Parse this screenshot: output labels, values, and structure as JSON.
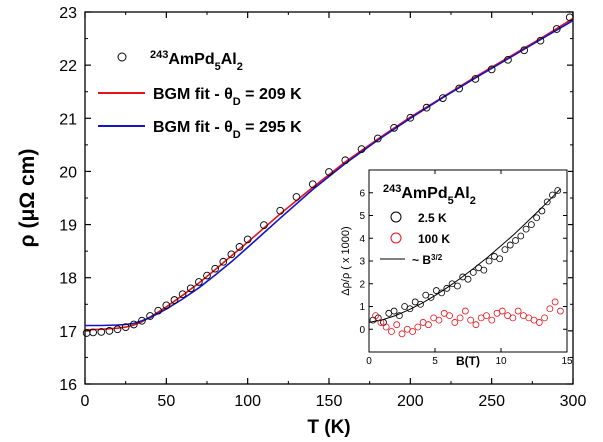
{
  "chart_data": [
    {
      "type": "line",
      "xlabel": "T (K)",
      "ylabel": "ρ (μΩ cm)",
      "xlim": [
        0,
        300
      ],
      "ylim": [
        16,
        23
      ],
      "x_ticks": [
        0,
        50,
        100,
        150,
        200,
        250,
        300
      ],
      "y_ticks": [
        16,
        17,
        18,
        19,
        20,
        21,
        22,
        23
      ],
      "legend_placement": "top-left",
      "grid": false,
      "series": [
        {
          "name": "243AmPd5Al2",
          "name_parts": {
            "sup": "243",
            "base": "AmPd",
            "sub1": "5",
            "mid": "Al",
            "sub2": "2"
          },
          "style": "open-circle",
          "color": "#000000",
          "x": [
            1,
            5,
            10,
            15,
            20,
            25,
            30,
            35,
            40,
            45,
            50,
            55,
            60,
            65,
            70,
            75,
            80,
            85,
            90,
            95,
            100,
            110,
            120,
            130,
            140,
            150,
            160,
            170,
            180,
            190,
            200,
            210,
            220,
            230,
            240,
            250,
            260,
            270,
            280,
            290,
            298
          ],
          "y": [
            16.96,
            16.97,
            16.98,
            17.0,
            17.03,
            17.07,
            17.12,
            17.19,
            17.28,
            17.38,
            17.48,
            17.58,
            17.69,
            17.8,
            17.92,
            18.04,
            18.17,
            18.3,
            18.44,
            18.58,
            18.72,
            18.99,
            19.26,
            19.52,
            19.76,
            19.99,
            20.21,
            20.42,
            20.62,
            20.82,
            21.01,
            21.2,
            21.38,
            21.56,
            21.74,
            21.92,
            22.1,
            22.28,
            22.46,
            22.68,
            22.9
          ]
        },
        {
          "name": "BGM fit - θD = 209 K",
          "name_parts": {
            "base": "BGM fit - θ",
            "sub": "D",
            "rest": " = 209 K"
          },
          "style": "line",
          "color": "#e8141b",
          "x": [
            0,
            10,
            20,
            25,
            30,
            35,
            40,
            50,
            60,
            70,
            80,
            90,
            100,
            120,
            140,
            160,
            180,
            200,
            220,
            240,
            260,
            280,
            300
          ],
          "y": [
            17.02,
            17.03,
            17.05,
            17.07,
            17.11,
            17.17,
            17.26,
            17.45,
            17.67,
            17.9,
            18.15,
            18.41,
            18.67,
            19.2,
            19.7,
            20.18,
            20.61,
            21.02,
            21.4,
            21.78,
            22.14,
            22.5,
            22.88
          ]
        },
        {
          "name": "BGM fit - θD = 295 K",
          "name_parts": {
            "base": "BGM fit - θ",
            "sub": "D",
            "rest": " = 295 K"
          },
          "style": "line",
          "color": "#1313c8",
          "x": [
            0,
            10,
            20,
            25,
            30,
            35,
            40,
            50,
            60,
            70,
            80,
            90,
            100,
            120,
            140,
            160,
            180,
            200,
            220,
            240,
            260,
            280,
            300
          ],
          "y": [
            17.1,
            17.1,
            17.11,
            17.12,
            17.14,
            17.19,
            17.25,
            17.41,
            17.6,
            17.81,
            18.05,
            18.3,
            18.57,
            19.12,
            19.66,
            20.15,
            20.59,
            21.0,
            21.39,
            21.76,
            22.12,
            22.48,
            22.84
          ]
        }
      ]
    },
    {
      "type": "scatter",
      "placement": "inset-bottom-right",
      "title_parts": {
        "sup": "243",
        "base": "AmPd",
        "sub1": "5",
        "mid": "Al",
        "sub2": "2"
      },
      "xlabel": "B(T)",
      "ylabel": "Δρ/ρ ( x 1000)",
      "xlim": [
        0,
        15
      ],
      "ylim": [
        -1,
        7
      ],
      "x_ticks": [
        0,
        5,
        10,
        15
      ],
      "y_ticks": [
        0,
        1,
        2,
        3,
        4,
        5,
        6
      ],
      "legend_placement": "top-left",
      "series": [
        {
          "name": "2.5 K",
          "style": "open-circle",
          "color": "#000000",
          "x": [
            0.3,
            0.7,
            1.1,
            1.5,
            1.9,
            2.3,
            2.7,
            3.1,
            3.5,
            3.9,
            4.3,
            4.7,
            5.1,
            5.5,
            5.9,
            6.3,
            6.7,
            7.1,
            7.5,
            7.9,
            8.3,
            8.7,
            9.1,
            9.5,
            9.9,
            10.3,
            10.7,
            11.1,
            11.5,
            11.9,
            12.3,
            12.7,
            13.1,
            13.5,
            13.9,
            14.3
          ],
          "y": [
            0.4,
            0.5,
            0.3,
            0.7,
            0.8,
            0.6,
            1.0,
            0.9,
            1.2,
            1.1,
            1.5,
            1.4,
            1.7,
            1.6,
            1.8,
            2.0,
            1.9,
            2.3,
            2.2,
            2.5,
            2.7,
            2.6,
            3.0,
            3.2,
            3.1,
            3.5,
            3.7,
            3.9,
            4.1,
            4.4,
            4.6,
            4.9,
            5.2,
            5.6,
            5.9,
            6.1
          ]
        },
        {
          "name": "100 K",
          "style": "open-circle",
          "color": "#e8141b",
          "x": [
            0.5,
            0.9,
            1.3,
            1.7,
            2.1,
            2.5,
            2.9,
            3.3,
            3.7,
            4.1,
            4.5,
            4.9,
            5.3,
            5.7,
            6.1,
            6.5,
            6.9,
            7.3,
            7.7,
            8.1,
            8.5,
            8.9,
            9.3,
            9.7,
            10.1,
            10.5,
            10.9,
            11.3,
            11.7,
            12.1,
            12.5,
            12.9,
            13.3,
            13.7,
            14.1,
            14.5
          ],
          "y": [
            0.6,
            0.3,
            0.1,
            -0.1,
            0.2,
            -0.2,
            0.0,
            -0.1,
            0.1,
            0.3,
            0.2,
            0.5,
            0.4,
            0.7,
            0.6,
            0.3,
            0.5,
            0.8,
            0.4,
            0.2,
            0.5,
            0.6,
            0.4,
            0.7,
            0.8,
            0.6,
            0.5,
            0.8,
            0.6,
            0.5,
            0.4,
            0.3,
            0.5,
            0.9,
            1.2,
            0.8
          ]
        },
        {
          "name": "~ B3/2",
          "name_parts": {
            "base": "~ B",
            "sup": "3/2"
          },
          "style": "line",
          "color": "#000000",
          "x": [
            0,
            1,
            2,
            3,
            4,
            5,
            6,
            7,
            8,
            9,
            10,
            11,
            12,
            13,
            14,
            14.5
          ],
          "y": [
            0.3,
            0.41,
            0.6,
            0.85,
            1.14,
            1.48,
            1.86,
            2.27,
            2.71,
            3.17,
            3.67,
            4.18,
            4.73,
            5.29,
            5.87,
            6.17
          ]
        }
      ]
    }
  ]
}
